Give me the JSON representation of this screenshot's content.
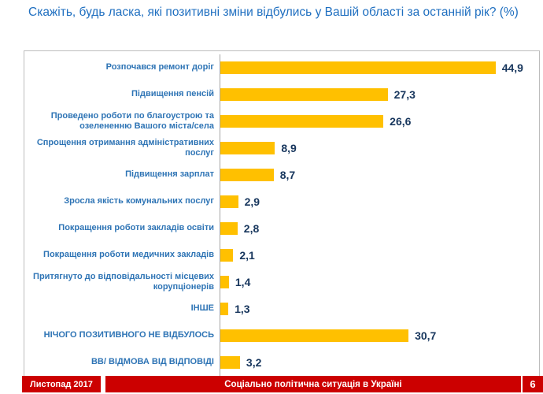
{
  "title": "Скажіть, будь ласка, які позитивні зміни відбулись у Вашій області за останній рік? (%)",
  "footer": {
    "date": "Листопад 2017",
    "center": "Соціально політична ситуація в Україні",
    "page": "6"
  },
  "colors": {
    "bar": "#FFC000",
    "title_text": "#1F6FC0",
    "category_text": "#2E74B5",
    "value_text": "#17365D",
    "footer_bg": "#CC0000"
  },
  "chart_data": {
    "type": "bar",
    "orientation": "horizontal",
    "title": "Скажіть, будь ласка, які позитивні зміни відбулись у Вашій області за останній рік? (%)",
    "xlabel": "",
    "ylabel": "",
    "xlim": [
      0,
      52
    ],
    "grid": false,
    "legend": false,
    "categories": [
      "Розпочався ремонт доріг",
      "Підвищення пенсій",
      "Проведено роботи по благоустрою та озелененню Вашого міста/села",
      "Спрощення отримання адміністративних послуг",
      "Підвищення зарплат",
      "Зросла якість комунальних послуг",
      "Покращення роботи закладів освіти",
      "Покращення роботи медичних закладів",
      "Притягнуто до відповідальності місцевих корупціонерів",
      "ІНШЕ",
      "НІЧОГО ПОЗИТИВНОГО НЕ ВІДБУЛОСЬ",
      "ВВ/ ВІДМОВА ВІД ВІДПОВІДІ"
    ],
    "values": [
      44.9,
      27.3,
      26.6,
      8.9,
      8.7,
      2.9,
      2.8,
      2.1,
      1.4,
      1.3,
      30.7,
      3.2
    ],
    "value_labels": [
      "44,9",
      "27,3",
      "26,6",
      "8,9",
      "8,7",
      "2,9",
      "2,8",
      "2,1",
      "1,4",
      "1,3",
      "30,7",
      "3,2"
    ]
  }
}
